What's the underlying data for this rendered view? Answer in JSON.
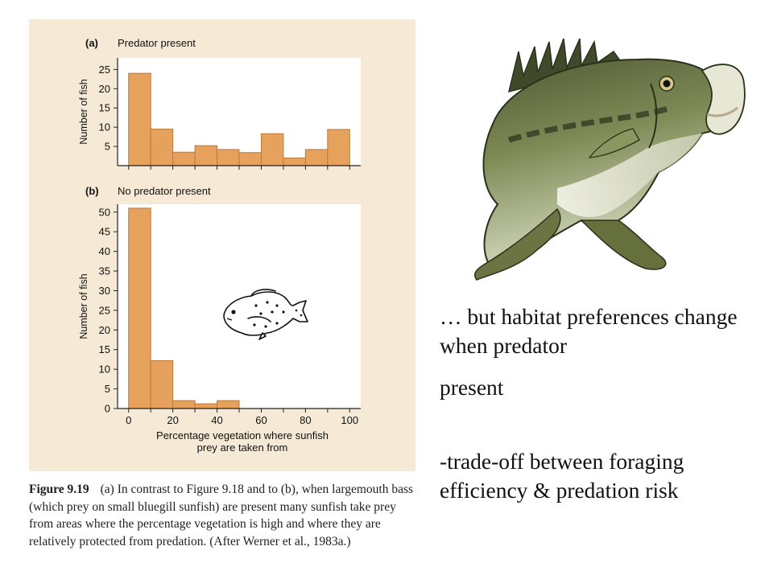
{
  "colors": {
    "panel": "#f6ead6",
    "bar": "#e6a15d",
    "bar_stroke": "#b97a3c",
    "axis": "#222222"
  },
  "chart_data": [
    {
      "type": "bar",
      "panel_label": "(a)",
      "title": "Predator present",
      "ylabel": "Number of fish",
      "xlabel": "",
      "ylim": [
        0,
        28
      ],
      "yticks": [
        5,
        10,
        15,
        20,
        25
      ],
      "xlim": [
        -5,
        105
      ],
      "bin_width": 10,
      "bins": [
        0,
        10,
        20,
        30,
        40,
        50,
        60,
        70,
        80,
        90
      ],
      "values": [
        24,
        9.5,
        3.5,
        5.2,
        4.2,
        3.4,
        8.3,
        2,
        4.2,
        9.4
      ],
      "xticks": [],
      "grid": false
    },
    {
      "type": "bar",
      "panel_label": "(b)",
      "title": "No predator present",
      "ylabel": "Number of fish",
      "xlabel": "Percentage vegetation where sunfish prey are taken from",
      "ylim": [
        0,
        52
      ],
      "yticks": [
        0,
        5,
        10,
        15,
        20,
        25,
        30,
        35,
        40,
        45,
        50
      ],
      "xlim": [
        -5,
        105
      ],
      "bin_width": 10,
      "bins": [
        0,
        10,
        20,
        30,
        40
      ],
      "values": [
        51,
        12.2,
        2,
        1.2,
        2
      ],
      "xticks": [
        0,
        20,
        40,
        60,
        80,
        100
      ],
      "grid": false
    }
  ],
  "caption": {
    "label": "Figure 9.19",
    "text": "(a) In contrast to Figure 9.18 and to (b), when largemouth bass (which prey on small bluegill sunfish) are present many sunfish take prey from areas where the percentage vegetation is high and where they are relatively protected from predation. (After Werner et al., 1983a.)"
  },
  "slide": {
    "line1": "… but habitat preferences change when predator",
    "line2": "present",
    "line3": "-trade-off between foraging efficiency & predation risk"
  }
}
